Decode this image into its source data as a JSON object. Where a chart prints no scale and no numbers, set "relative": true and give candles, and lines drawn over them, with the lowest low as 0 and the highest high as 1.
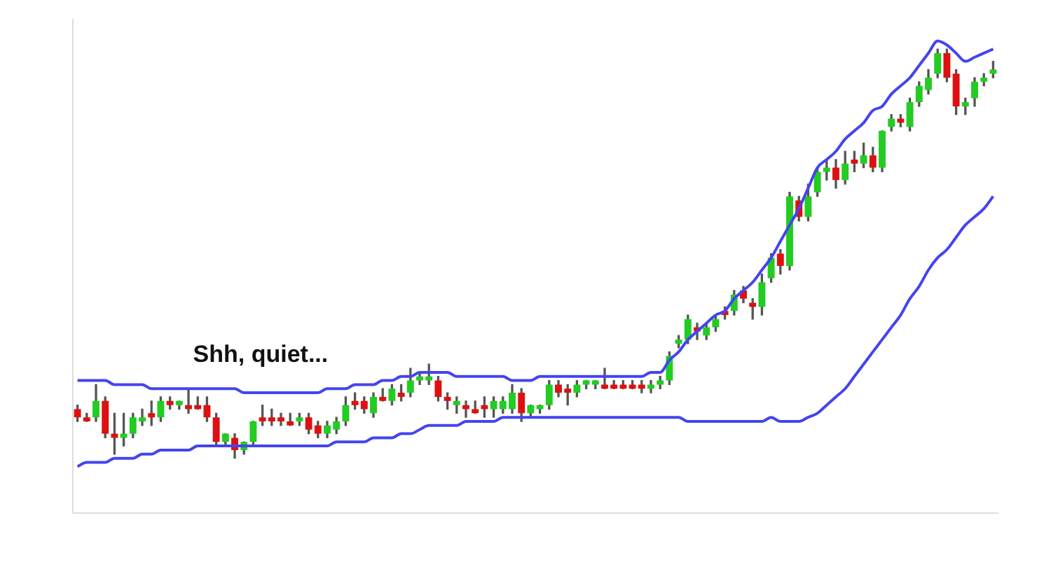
{
  "chart_data": {
    "type": "candlestick",
    "relative": true,
    "legend": false,
    "grid": false,
    "annotations": [
      "Shh, quiet..."
    ],
    "categories": [
      null,
      null,
      null,
      null,
      null,
      null,
      null,
      null,
      null,
      null,
      null,
      null,
      null,
      null,
      null,
      null,
      null,
      null,
      null,
      null,
      null,
      null,
      null,
      null,
      null,
      null,
      null,
      null,
      null,
      null,
      null,
      null,
      null,
      null,
      null,
      null,
      null,
      null,
      null,
      null,
      null,
      null,
      null,
      null,
      null,
      null,
      null,
      null,
      null,
      null,
      null,
      null,
      null,
      null,
      null,
      null,
      null,
      null,
      null,
      null,
      null,
      null,
      null,
      null,
      null,
      null,
      null,
      null,
      null,
      null,
      null,
      null,
      null,
      null,
      null,
      null,
      null,
      null,
      null,
      null,
      null,
      null,
      null,
      null,
      null,
      null,
      null,
      null,
      null,
      null,
      null,
      null,
      null,
      null,
      null,
      null,
      null,
      null,
      null,
      null
    ],
    "ohlc": [
      [
        0.12,
        0.13,
        0.09,
        0.1
      ],
      [
        0.1,
        0.11,
        0.09,
        0.09
      ],
      [
        0.1,
        0.18,
        0.09,
        0.14
      ],
      [
        0.14,
        0.15,
        0.05,
        0.06
      ],
      [
        0.06,
        0.11,
        0.01,
        0.05
      ],
      [
        0.05,
        0.11,
        0.03,
        0.06
      ],
      [
        0.06,
        0.11,
        0.05,
        0.1
      ],
      [
        0.09,
        0.12,
        0.08,
        0.1
      ],
      [
        0.11,
        0.14,
        0.08,
        0.1
      ],
      [
        0.1,
        0.15,
        0.09,
        0.14
      ],
      [
        0.14,
        0.15,
        0.12,
        0.13
      ],
      [
        0.13,
        0.14,
        0.12,
        0.14
      ],
      [
        0.13,
        0.17,
        0.11,
        0.12
      ],
      [
        0.13,
        0.15,
        0.12,
        0.12
      ],
      [
        0.13,
        0.15,
        0.09,
        0.1
      ],
      [
        0.1,
        0.11,
        0.03,
        0.04
      ],
      [
        0.04,
        0.06,
        0.03,
        0.06
      ],
      [
        0.05,
        0.06,
        0,
        0.02
      ],
      [
        0.02,
        0.04,
        0.01,
        0.04
      ],
      [
        0.04,
        0.09,
        0.03,
        0.09
      ],
      [
        0.1,
        0.13,
        0.08,
        0.09
      ],
      [
        0.1,
        0.12,
        0.08,
        0.09
      ],
      [
        0.1,
        0.11,
        0.08,
        0.09
      ],
      [
        0.09,
        0.11,
        0.08,
        0.08
      ],
      [
        0.09,
        0.11,
        0.08,
        0.1
      ],
      [
        0.1,
        0.11,
        0.06,
        0.07
      ],
      [
        0.08,
        0.09,
        0.05,
        0.06
      ],
      [
        0.06,
        0.09,
        0.05,
        0.08
      ],
      [
        0.07,
        0.1,
        0.06,
        0.09
      ],
      [
        0.09,
        0.15,
        0.08,
        0.13
      ],
      [
        0.14,
        0.16,
        0.12,
        0.13
      ],
      [
        0.14,
        0.15,
        0.11,
        0.12
      ],
      [
        0.11,
        0.16,
        0.1,
        0.15
      ],
      [
        0.15,
        0.17,
        0.14,
        0.14
      ],
      [
        0.14,
        0.18,
        0.13,
        0.17
      ],
      [
        0.16,
        0.18,
        0.14,
        0.15
      ],
      [
        0.16,
        0.22,
        0.15,
        0.19
      ],
      [
        0.19,
        0.21,
        0.18,
        0.2
      ],
      [
        0.19,
        0.23,
        0.18,
        0.2
      ],
      [
        0.19,
        0.2,
        0.14,
        0.15
      ],
      [
        0.15,
        0.16,
        0.12,
        0.14
      ],
      [
        0.13,
        0.15,
        0.11,
        0.14
      ],
      [
        0.13,
        0.14,
        0.1,
        0.12
      ],
      [
        0.12,
        0.14,
        0.11,
        0.11
      ],
      [
        0.13,
        0.15,
        0.1,
        0.12
      ],
      [
        0.12,
        0.15,
        0.1,
        0.14
      ],
      [
        0.12,
        0.15,
        0.11,
        0.14
      ],
      [
        0.12,
        0.18,
        0.11,
        0.16
      ],
      [
        0.16,
        0.17,
        0.09,
        0.11
      ],
      [
        0.11,
        0.13,
        0.1,
        0.13
      ],
      [
        0.12,
        0.13,
        0.11,
        0.13
      ],
      [
        0.13,
        0.19,
        0.12,
        0.18
      ],
      [
        0.18,
        0.19,
        0.15,
        0.16
      ],
      [
        0.17,
        0.18,
        0.13,
        0.16
      ],
      [
        0.16,
        0.19,
        0.15,
        0.18
      ],
      [
        0.18,
        0.19,
        0.17,
        0.19
      ],
      [
        0.18,
        0.19,
        0.17,
        0.19
      ],
      [
        0.18,
        0.22,
        0.17,
        0.17
      ],
      [
        0.18,
        0.19,
        0.17,
        0.17
      ],
      [
        0.18,
        0.19,
        0.17,
        0.17
      ],
      [
        0.18,
        0.19,
        0.17,
        0.17
      ],
      [
        0.18,
        0.19,
        0.16,
        0.17
      ],
      [
        0.17,
        0.19,
        0.16,
        0.18
      ],
      [
        0.18,
        0.2,
        0.17,
        0.19
      ],
      [
        0.19,
        0.26,
        0.18,
        0.25
      ],
      [
        0.28,
        0.3,
        0.27,
        0.29
      ],
      [
        0.29,
        0.35,
        0.28,
        0.34
      ],
      [
        0.32,
        0.33,
        0.29,
        0.31
      ],
      [
        0.3,
        0.33,
        0.29,
        0.32
      ],
      [
        0.32,
        0.35,
        0.31,
        0.34
      ],
      [
        0.36,
        0.37,
        0.34,
        0.35
      ],
      [
        0.36,
        0.41,
        0.35,
        0.4
      ],
      [
        0.41,
        0.42,
        0.38,
        0.39
      ],
      [
        0.38,
        0.39,
        0.34,
        0.37
      ],
      [
        0.37,
        0.45,
        0.35,
        0.43
      ],
      [
        0.44,
        0.5,
        0.43,
        0.49
      ],
      [
        0.5,
        0.51,
        0.45,
        0.47
      ],
      [
        0.47,
        0.65,
        0.46,
        0.64
      ],
      [
        0.63,
        0.64,
        0.58,
        0.59
      ],
      [
        0.59,
        0.67,
        0.58,
        0.64
      ],
      [
        0.65,
        0.71,
        0.64,
        0.7
      ],
      [
        0.7,
        0.73,
        0.68,
        0.71
      ],
      [
        0.71,
        0.73,
        0.66,
        0.68
      ],
      [
        0.68,
        0.75,
        0.67,
        0.72
      ],
      [
        0.73,
        0.75,
        0.7,
        0.72
      ],
      [
        0.72,
        0.77,
        0.71,
        0.74
      ],
      [
        0.74,
        0.76,
        0.7,
        0.71
      ],
      [
        0.71,
        0.8,
        0.7,
        0.8
      ],
      [
        0.81,
        0.84,
        0.8,
        0.83
      ],
      [
        0.83,
        0.84,
        0.81,
        0.82
      ],
      [
        0.81,
        0.88,
        0.8,
        0.87
      ],
      [
        0.87,
        0.92,
        0.86,
        0.91
      ],
      [
        0.9,
        0.95,
        0.89,
        0.93
      ],
      [
        0.94,
        1,
        0.93,
        0.99
      ],
      [
        0.99,
        1,
        0.92,
        0.93
      ],
      [
        0.94,
        0.95,
        0.84,
        0.86
      ],
      [
        0.86,
        0.88,
        0.84,
        0.87
      ],
      [
        0.88,
        0.93,
        0.86,
        0.92
      ],
      [
        0.92,
        0.94,
        0.91,
        0.93
      ],
      [
        0.94,
        0.97,
        0.93,
        0.95
      ]
    ],
    "colors": [
      "#dd1111",
      "#dd1111",
      "#22cc22",
      "#dd1111",
      "#dd1111",
      "#22cc22",
      "#22cc22",
      "#22cc22",
      "#dd1111",
      "#22cc22",
      "#dd1111",
      "#22cc22",
      "#dd1111",
      "#dd1111",
      "#dd1111",
      "#dd1111",
      "#22cc22",
      "#dd1111",
      "#22cc22",
      "#22cc22",
      "#dd1111",
      "#dd1111",
      "#dd1111",
      "#dd1111",
      "#22cc22",
      "#dd1111",
      "#dd1111",
      "#22cc22",
      "#22cc22",
      "#22cc22",
      "#dd1111",
      "#dd1111",
      "#22cc22",
      "#dd1111",
      "#22cc22",
      "#dd1111",
      "#22cc22",
      "#22cc22",
      "#22cc22",
      "#dd1111",
      "#dd1111",
      "#22cc22",
      "#dd1111",
      "#dd1111",
      "#dd1111",
      "#22cc22",
      "#22cc22",
      "#22cc22",
      "#dd1111",
      "#22cc22",
      "#22cc22",
      "#22cc22",
      "#dd1111",
      "#dd1111",
      "#22cc22",
      "#22cc22",
      "#22cc22",
      "#dd1111",
      "#dd1111",
      "#dd1111",
      "#dd1111",
      "#dd1111",
      "#22cc22",
      "#22cc22",
      "#22cc22",
      "#22cc22",
      "#22cc22",
      "#dd1111",
      "#22cc22",
      "#22cc22",
      "#dd1111",
      "#22cc22",
      "#dd1111",
      "#dd1111",
      "#22cc22",
      "#22cc22",
      "#dd1111",
      "#22cc22",
      "#dd1111",
      "#22cc22",
      "#22cc22",
      "#22cc22",
      "#dd1111",
      "#22cc22",
      "#dd1111",
      "#22cc22",
      "#dd1111",
      "#22cc22",
      "#22cc22",
      "#dd1111",
      "#22cc22",
      "#22cc22",
      "#22cc22",
      "#22cc22",
      "#dd1111",
      "#dd1111",
      "#22cc22",
      "#22cc22",
      "#22cc22",
      "#22cc22"
    ],
    "series": [
      {
        "type": "line",
        "color": "#4444ee",
        "values": [
          0.19,
          0.19,
          0.19,
          0.19,
          0.18,
          0.18,
          0.18,
          0.18,
          0.17,
          0.17,
          0.17,
          0.17,
          0.17,
          0.17,
          0.17,
          0.17,
          0.17,
          0.17,
          0.16,
          0.16,
          0.16,
          0.16,
          0.16,
          0.16,
          0.16,
          0.16,
          0.16,
          0.17,
          0.17,
          0.17,
          0.18,
          0.18,
          0.18,
          0.19,
          0.19,
          0.2,
          0.2,
          0.21,
          0.21,
          0.21,
          0.21,
          0.2,
          0.2,
          0.2,
          0.2,
          0.2,
          0.2,
          0.19,
          0.19,
          0.19,
          0.2,
          0.2,
          0.2,
          0.2,
          0.2,
          0.2,
          0.2,
          0.2,
          0.2,
          0.2,
          0.2,
          0.2,
          0.21,
          0.21,
          0.24,
          0.26,
          0.29,
          0.31,
          0.33,
          0.35,
          0.36,
          0.39,
          0.41,
          0.43,
          0.46,
          0.49,
          0.53,
          0.57,
          0.61,
          0.66,
          0.71,
          0.73,
          0.75,
          0.78,
          0.8,
          0.82,
          0.85,
          0.86,
          0.89,
          0.91,
          0.93,
          0.96,
          0.99,
          1.02,
          1.01,
          0.99,
          0.97,
          0.98,
          0.99,
          1.0
        ]
      },
      {
        "type": "line",
        "color": "#4444ee",
        "values": [
          -0.02,
          -0.01,
          -0.01,
          -0.01,
          0,
          0,
          0,
          0.01,
          0.01,
          0.02,
          0.02,
          0.02,
          0.02,
          0.03,
          0.03,
          0.03,
          0.03,
          0.03,
          0.03,
          0.03,
          0.03,
          0.03,
          0.03,
          0.03,
          0.03,
          0.03,
          0.03,
          0.03,
          0.04,
          0.04,
          0.04,
          0.04,
          0.05,
          0.05,
          0.05,
          0.06,
          0.06,
          0.07,
          0.08,
          0.08,
          0.08,
          0.08,
          0.09,
          0.09,
          0.09,
          0.09,
          0.1,
          0.1,
          0.1,
          0.1,
          0.1,
          0.1,
          0.1,
          0.1,
          0.1,
          0.1,
          0.1,
          0.1,
          0.1,
          0.1,
          0.1,
          0.1,
          0.1,
          0.1,
          0.1,
          0.1,
          0.09,
          0.09,
          0.09,
          0.09,
          0.09,
          0.09,
          0.09,
          0.09,
          0.09,
          0.1,
          0.09,
          0.09,
          0.09,
          0.1,
          0.11,
          0.13,
          0.15,
          0.17,
          0.2,
          0.23,
          0.26,
          0.29,
          0.32,
          0.35,
          0.39,
          0.42,
          0.46,
          0.49,
          0.51,
          0.54,
          0.57,
          0.59,
          0.61,
          0.64
        ]
      }
    ]
  }
}
